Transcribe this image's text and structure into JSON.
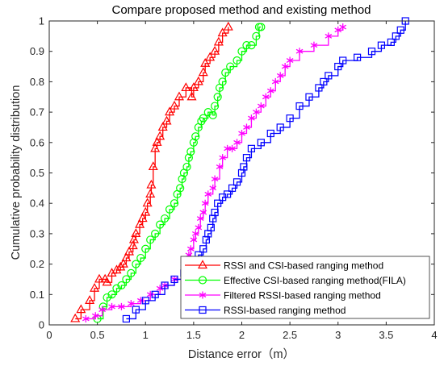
{
  "chart_data": {
    "type": "line",
    "title": "Compare proposed method and existing method",
    "xlabel": "Distance error（m）",
    "ylabel": "Cumulative probability distribution",
    "xlim": [
      0,
      4
    ],
    "ylim": [
      0,
      1
    ],
    "xticks": [
      "0",
      "0.5",
      "1",
      "1.5",
      "2",
      "2.5",
      "3",
      "3.5",
      "4"
    ],
    "yticks": [
      "0",
      "0.1",
      "0.2",
      "0.3",
      "0.4",
      "0.5",
      "0.6",
      "0.7",
      "0.8",
      "0.9",
      "1"
    ],
    "grid": false,
    "legend_position": "bottom-right",
    "series": [
      {
        "name": "RSSI and CSI-based ranging method",
        "color": "#ff0000",
        "marker": "triangle",
        "x": [
          0.27,
          0.33,
          0.42,
          0.47,
          0.52,
          0.58,
          0.6,
          0.65,
          0.7,
          0.74,
          0.77,
          0.8,
          0.83,
          0.87,
          0.88,
          0.9,
          0.94,
          0.97,
          1.0,
          1.02,
          1.05,
          1.06,
          1.08,
          1.1,
          1.12,
          1.15,
          1.18,
          1.22,
          1.25,
          1.3,
          1.35,
          1.42,
          1.48,
          1.5,
          1.55,
          1.6,
          1.62,
          1.67,
          1.72,
          1.76,
          1.8,
          1.86
        ],
        "y": [
          0.02,
          0.05,
          0.08,
          0.12,
          0.15,
          0.15,
          0.14,
          0.17,
          0.18,
          0.19,
          0.2,
          0.22,
          0.24,
          0.26,
          0.28,
          0.3,
          0.33,
          0.35,
          0.37,
          0.4,
          0.43,
          0.46,
          0.52,
          0.58,
          0.6,
          0.62,
          0.65,
          0.67,
          0.7,
          0.72,
          0.75,
          0.78,
          0.75,
          0.78,
          0.8,
          0.83,
          0.86,
          0.88,
          0.9,
          0.93,
          0.96,
          0.98
        ]
      },
      {
        "name": "Effective CSI-based ranging method(FILA)",
        "color": "#00ff00",
        "marker": "circle",
        "x": [
          0.5,
          0.56,
          0.6,
          0.65,
          0.7,
          0.75,
          0.8,
          0.85,
          0.9,
          0.95,
          1.0,
          1.05,
          1.1,
          1.15,
          1.2,
          1.25,
          1.3,
          1.33,
          1.36,
          1.38,
          1.4,
          1.43,
          1.45,
          1.47,
          1.5,
          1.52,
          1.55,
          1.58,
          1.6,
          1.65,
          1.7,
          1.72,
          1.75,
          1.77,
          1.8,
          1.83,
          1.88,
          1.95,
          2.0,
          2.05,
          2.1,
          2.15,
          2.18,
          2.2
        ],
        "y": [
          0.02,
          0.06,
          0.09,
          0.1,
          0.12,
          0.13,
          0.15,
          0.17,
          0.2,
          0.22,
          0.25,
          0.28,
          0.3,
          0.33,
          0.35,
          0.38,
          0.4,
          0.43,
          0.45,
          0.48,
          0.5,
          0.52,
          0.55,
          0.57,
          0.6,
          0.62,
          0.65,
          0.67,
          0.68,
          0.7,
          0.69,
          0.72,
          0.75,
          0.78,
          0.8,
          0.83,
          0.85,
          0.87,
          0.9,
          0.92,
          0.92,
          0.95,
          0.98,
          0.98
        ]
      },
      {
        "name": "Filtered RSSI-based ranging method",
        "color": "#ff00ff",
        "marker": "asterisk",
        "x": [
          0.38,
          0.48,
          0.55,
          0.65,
          0.75,
          0.85,
          0.95,
          1.05,
          1.15,
          1.2,
          1.3,
          1.4,
          1.45,
          1.47,
          1.5,
          1.52,
          1.55,
          1.57,
          1.6,
          1.62,
          1.65,
          1.7,
          1.72,
          1.77,
          1.8,
          1.85,
          1.9,
          1.95,
          2.0,
          2.05,
          2.1,
          2.15,
          2.2,
          2.25,
          2.3,
          2.35,
          2.4,
          2.45,
          2.5,
          2.6,
          2.75,
          2.9,
          3.0,
          3.05
        ],
        "y": [
          0.02,
          0.03,
          0.05,
          0.06,
          0.06,
          0.07,
          0.08,
          0.1,
          0.12,
          0.13,
          0.15,
          0.2,
          0.23,
          0.25,
          0.28,
          0.3,
          0.32,
          0.35,
          0.37,
          0.4,
          0.43,
          0.45,
          0.48,
          0.52,
          0.55,
          0.58,
          0.58,
          0.6,
          0.63,
          0.65,
          0.68,
          0.7,
          0.72,
          0.75,
          0.77,
          0.8,
          0.82,
          0.85,
          0.87,
          0.9,
          0.92,
          0.95,
          0.97,
          0.98
        ]
      },
      {
        "name": "RSSI-based ranging method",
        "color": "#0000ff",
        "marker": "square",
        "x": [
          0.8,
          0.9,
          1.0,
          1.1,
          1.2,
          1.3,
          1.4,
          1.5,
          1.55,
          1.6,
          1.63,
          1.65,
          1.68,
          1.7,
          1.72,
          1.75,
          1.8,
          1.85,
          1.9,
          1.95,
          2.0,
          2.02,
          2.05,
          2.1,
          2.2,
          2.3,
          2.4,
          2.5,
          2.6,
          2.7,
          2.8,
          2.85,
          2.9,
          3.0,
          3.05,
          3.2,
          3.35,
          3.45,
          3.55,
          3.6,
          3.65,
          3.7
        ],
        "y": [
          0.02,
          0.05,
          0.08,
          0.1,
          0.13,
          0.15,
          0.17,
          0.2,
          0.23,
          0.25,
          0.28,
          0.3,
          0.32,
          0.35,
          0.37,
          0.4,
          0.42,
          0.43,
          0.45,
          0.47,
          0.5,
          0.52,
          0.55,
          0.58,
          0.6,
          0.63,
          0.65,
          0.68,
          0.72,
          0.75,
          0.78,
          0.8,
          0.82,
          0.85,
          0.87,
          0.88,
          0.9,
          0.92,
          0.93,
          0.95,
          0.97,
          1.0
        ]
      }
    ]
  }
}
